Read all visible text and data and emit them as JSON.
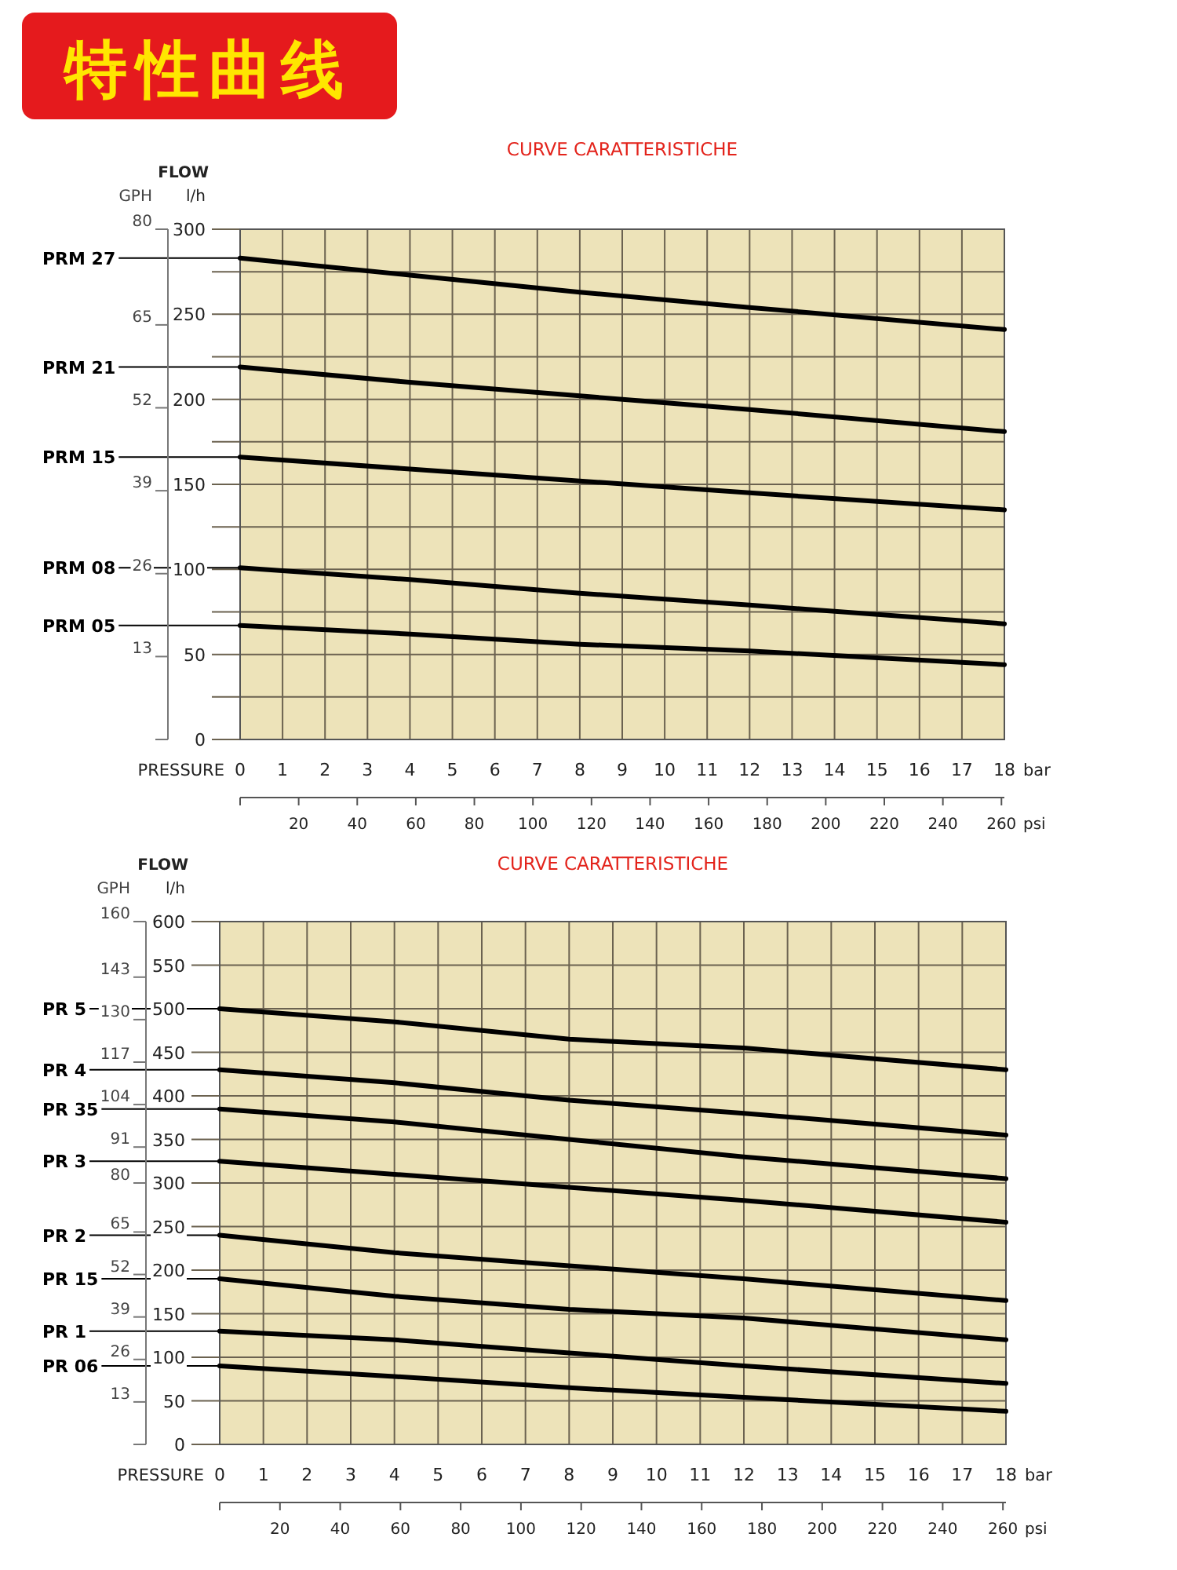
{
  "chart_data": [
    {
      "type": "line",
      "title": "CURVE CARATTERISTICHE",
      "xlabel": "bar",
      "x2label": "psi",
      "ylabel": "l/h",
      "y2label": "GPH",
      "annotations": [
        "FLOW",
        "PRESSURE",
        "特性曲线"
      ],
      "x": [
        0,
        4,
        8,
        12,
        18
      ],
      "xlim": [
        0,
        18
      ],
      "xticks": [
        0,
        1,
        2,
        3,
        4,
        5,
        6,
        7,
        8,
        9,
        10,
        11,
        12,
        13,
        14,
        15,
        16,
        17,
        18
      ],
      "x2lim": [
        0,
        261
      ],
      "x2ticks": [
        {
          "value": 0,
          "label": null
        },
        20,
        40,
        60,
        80,
        100,
        120,
        140,
        160,
        180,
        200,
        220,
        240,
        260
      ],
      "ylim": [
        0,
        300
      ],
      "yticks": [
        0,
        {
          "value": 25,
          "label": null
        },
        50,
        {
          "value": 75,
          "label": null
        },
        100,
        {
          "value": 125,
          "label": null
        },
        150,
        {
          "value": 175,
          "label": null
        },
        200,
        {
          "value": 225,
          "label": null
        },
        250,
        {
          "value": 275,
          "label": null
        },
        300
      ],
      "y2lim": [
        0,
        80
      ],
      "y2ticks": [
        {
          "value": 0,
          "label": null
        },
        13,
        26,
        39,
        52,
        65,
        80
      ],
      "grid": true,
      "legend": false,
      "marker": "none",
      "line_style": "solid",
      "series": [
        {
          "name": "PRM 27",
          "color": "#000000",
          "values": [
            283,
            273,
            263,
            254,
            241
          ]
        },
        {
          "name": "PRM 21",
          "color": "#000000",
          "values": [
            219,
            210,
            202,
            194,
            181
          ]
        },
        {
          "name": "PRM 15",
          "color": "#000000",
          "values": [
            166,
            159,
            152,
            145,
            135
          ]
        },
        {
          "name": "PRM 08",
          "color": "#000000",
          "values": [
            101,
            94,
            86,
            79,
            68
          ]
        },
        {
          "name": "PRM 05",
          "color": "#000000",
          "values": [
            67,
            62,
            56,
            52,
            44
          ]
        }
      ]
    },
    {
      "type": "line",
      "title": "CURVE CARATTERISTICHE",
      "xlabel": "bar",
      "x2label": "psi",
      "ylabel": "l/h",
      "y2label": "GPH",
      "annotations": [
        "FLOW",
        "PRESSURE"
      ],
      "x": [
        0,
        4,
        8,
        12,
        18
      ],
      "xlim": [
        0,
        18
      ],
      "xticks": [
        0,
        1,
        2,
        3,
        4,
        5,
        6,
        7,
        8,
        9,
        10,
        11,
        12,
        13,
        14,
        15,
        16,
        17,
        18
      ],
      "x2lim": [
        0,
        261
      ],
      "x2ticks": [
        {
          "value": 0,
          "label": null
        },
        20,
        40,
        60,
        80,
        100,
        120,
        140,
        160,
        180,
        200,
        220,
        240,
        260
      ],
      "ylim": [
        0,
        600
      ],
      "yticks": [
        0,
        50,
        100,
        150,
        200,
        250,
        300,
        350,
        400,
        450,
        500,
        550,
        600
      ],
      "y2lim": [
        0,
        160
      ],
      "y2ticks": [
        {
          "value": 0,
          "label": null
        },
        13,
        26,
        39,
        52,
        65,
        80,
        91,
        104,
        117,
        130,
        143,
        160
      ],
      "grid": true,
      "legend": false,
      "marker": "none",
      "line_style": "solid",
      "series": [
        {
          "name": "PR 5",
          "color": "#000000",
          "values": [
            500,
            485,
            465,
            455,
            430
          ]
        },
        {
          "name": "PR 4",
          "color": "#000000",
          "values": [
            430,
            415,
            395,
            380,
            355
          ]
        },
        {
          "name": "PR 35",
          "color": "#000000",
          "values": [
            385,
            370,
            350,
            330,
            305
          ]
        },
        {
          "name": "PR 3",
          "color": "#000000",
          "values": [
            325,
            310,
            295,
            280,
            255
          ]
        },
        {
          "name": "PR 2",
          "color": "#000000",
          "values": [
            240,
            220,
            205,
            190,
            165
          ]
        },
        {
          "name": "PR 15",
          "color": "#000000",
          "values": [
            190,
            170,
            155,
            145,
            120
          ]
        },
        {
          "name": "PR 1",
          "color": "#000000",
          "values": [
            130,
            120,
            105,
            90,
            70
          ]
        },
        {
          "name": "PR 06",
          "color": "#000000",
          "values": [
            90,
            78,
            65,
            54,
            38
          ]
        }
      ]
    }
  ]
}
